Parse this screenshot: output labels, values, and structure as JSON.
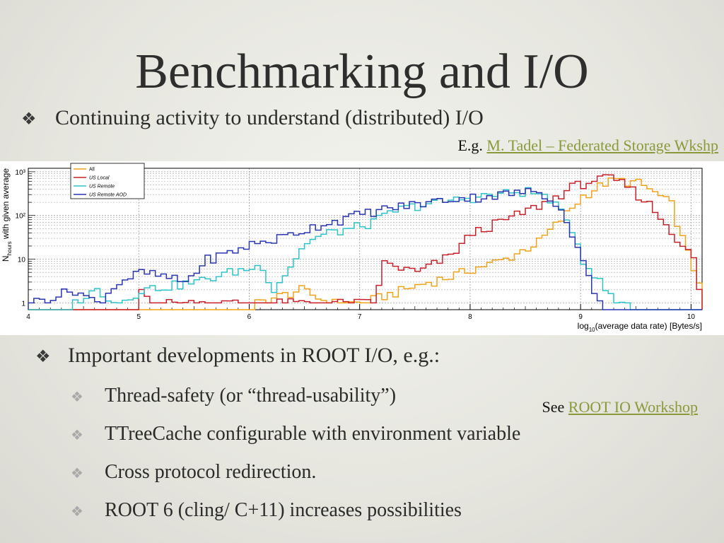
{
  "title": "Benchmarking and I/O",
  "bullets": {
    "top": "Continuing activity to understand (distributed) I/O",
    "example_prefix": "E.g. ",
    "example_link": "M. Tadel – Federated Storage Wkshp ",
    "main": "Important developments in ROOT I/O, e.g.:",
    "sub": [
      "Thread-safety (or “thread-usability”)",
      "TTreeCache configurable with environment variable",
      "Cross protocol redirection.",
      "ROOT 6 (cling/ C+11) increases possibilities"
    ],
    "see_prefix": "See ",
    "see_link": "ROOT IO Workshop"
  },
  "icons": {
    "bullet": "four-petal-diamond-icon"
  },
  "colors": {
    "link": "#8a9a3a",
    "title": "#2e2e2e"
  },
  "chart_data": {
    "type": "histogram",
    "xlabel_main": "log",
    "xlabel_sub": "10",
    "xlabel_rest": "(average data rate) [Bytes/s]",
    "ylabel_main": "N",
    "ylabel_sub": "hours",
    "ylabel_rest": " with given average",
    "xlim": [
      4,
      10.1
    ],
    "ylim": [
      0.7,
      1200
    ],
    "log_y": true,
    "grid": true,
    "x_ticks": [
      "4",
      "5",
      "6",
      "7",
      "8",
      "9",
      "10"
    ],
    "y_ticks": [
      {
        "v": 1,
        "label": "1"
      },
      {
        "v": 10,
        "label": "10"
      },
      {
        "v": 100,
        "label": "10²"
      },
      {
        "v": 1000,
        "label": "10³"
      }
    ],
    "legend_position": "top-left",
    "series": [
      {
        "name": "All",
        "color": "#f0a21a",
        "points": [
          [
            6.05,
            1
          ],
          [
            6.45,
            2
          ],
          [
            6.7,
            1
          ],
          [
            7.0,
            1
          ],
          [
            7.6,
            3
          ],
          [
            7.8,
            4
          ],
          [
            8.0,
            6
          ],
          [
            8.3,
            10
          ],
          [
            8.6,
            25
          ],
          [
            8.8,
            80
          ],
          [
            9.0,
            280
          ],
          [
            9.2,
            550
          ],
          [
            9.3,
            650
          ],
          [
            9.5,
            550
          ],
          [
            9.6,
            400
          ],
          [
            9.8,
            180
          ],
          [
            9.9,
            30
          ],
          [
            10.0,
            6
          ],
          [
            10.1,
            2
          ]
        ]
      },
      {
        "name": "US Local",
        "color": "#c8202a",
        "points": [
          [
            5.0,
            2
          ],
          [
            5.1,
            1
          ],
          [
            6.0,
            1
          ],
          [
            7.1,
            1
          ],
          [
            7.2,
            8
          ],
          [
            7.5,
            5
          ],
          [
            7.8,
            12
          ],
          [
            8.0,
            40
          ],
          [
            8.3,
            80
          ],
          [
            8.5,
            130
          ],
          [
            8.7,
            220
          ],
          [
            8.9,
            450
          ],
          [
            9.1,
            650
          ],
          [
            9.25,
            700
          ],
          [
            9.4,
            480
          ],
          [
            9.6,
            180
          ],
          [
            9.8,
            45
          ],
          [
            10.0,
            10
          ],
          [
            10.05,
            2
          ]
        ]
      },
      {
        "name": "US Remote",
        "color": "#2ec3c8",
        "points": [
          [
            4.4,
            1
          ],
          [
            4.6,
            2
          ],
          [
            4.8,
            1
          ],
          [
            5.0,
            2
          ],
          [
            5.5,
            3
          ],
          [
            5.8,
            5
          ],
          [
            6.1,
            7
          ],
          [
            6.2,
            2
          ],
          [
            6.5,
            25
          ],
          [
            6.7,
            40
          ],
          [
            6.9,
            50
          ],
          [
            7.1,
            70
          ],
          [
            7.3,
            130
          ],
          [
            7.5,
            170
          ],
          [
            7.7,
            200
          ],
          [
            7.9,
            240
          ],
          [
            8.1,
            280
          ],
          [
            8.3,
            320
          ],
          [
            8.5,
            360
          ],
          [
            8.7,
            250
          ],
          [
            8.9,
            50
          ],
          [
            9.0,
            10
          ],
          [
            9.15,
            3
          ],
          [
            9.3,
            1
          ],
          [
            9.4,
            1
          ]
        ]
      },
      {
        "name": "US Remote AOD",
        "color": "#2a35b0",
        "points": [
          [
            4.0,
            1
          ],
          [
            4.4,
            2
          ],
          [
            4.6,
            1
          ],
          [
            4.8,
            3
          ],
          [
            5.0,
            5
          ],
          [
            5.2,
            4
          ],
          [
            5.4,
            3
          ],
          [
            5.6,
            10
          ],
          [
            5.8,
            14
          ],
          [
            6.0,
            22
          ],
          [
            6.2,
            28
          ],
          [
            6.4,
            40
          ],
          [
            6.6,
            60
          ],
          [
            6.8,
            80
          ],
          [
            7.0,
            110
          ],
          [
            7.2,
            140
          ],
          [
            7.4,
            170
          ],
          [
            7.6,
            200
          ],
          [
            7.8,
            240
          ],
          [
            8.0,
            260
          ],
          [
            8.2,
            290
          ],
          [
            8.4,
            330
          ],
          [
            8.6,
            360
          ],
          [
            8.75,
            210
          ],
          [
            8.9,
            40
          ],
          [
            9.0,
            8
          ],
          [
            9.1,
            2
          ],
          [
            9.15,
            1
          ]
        ]
      }
    ]
  }
}
